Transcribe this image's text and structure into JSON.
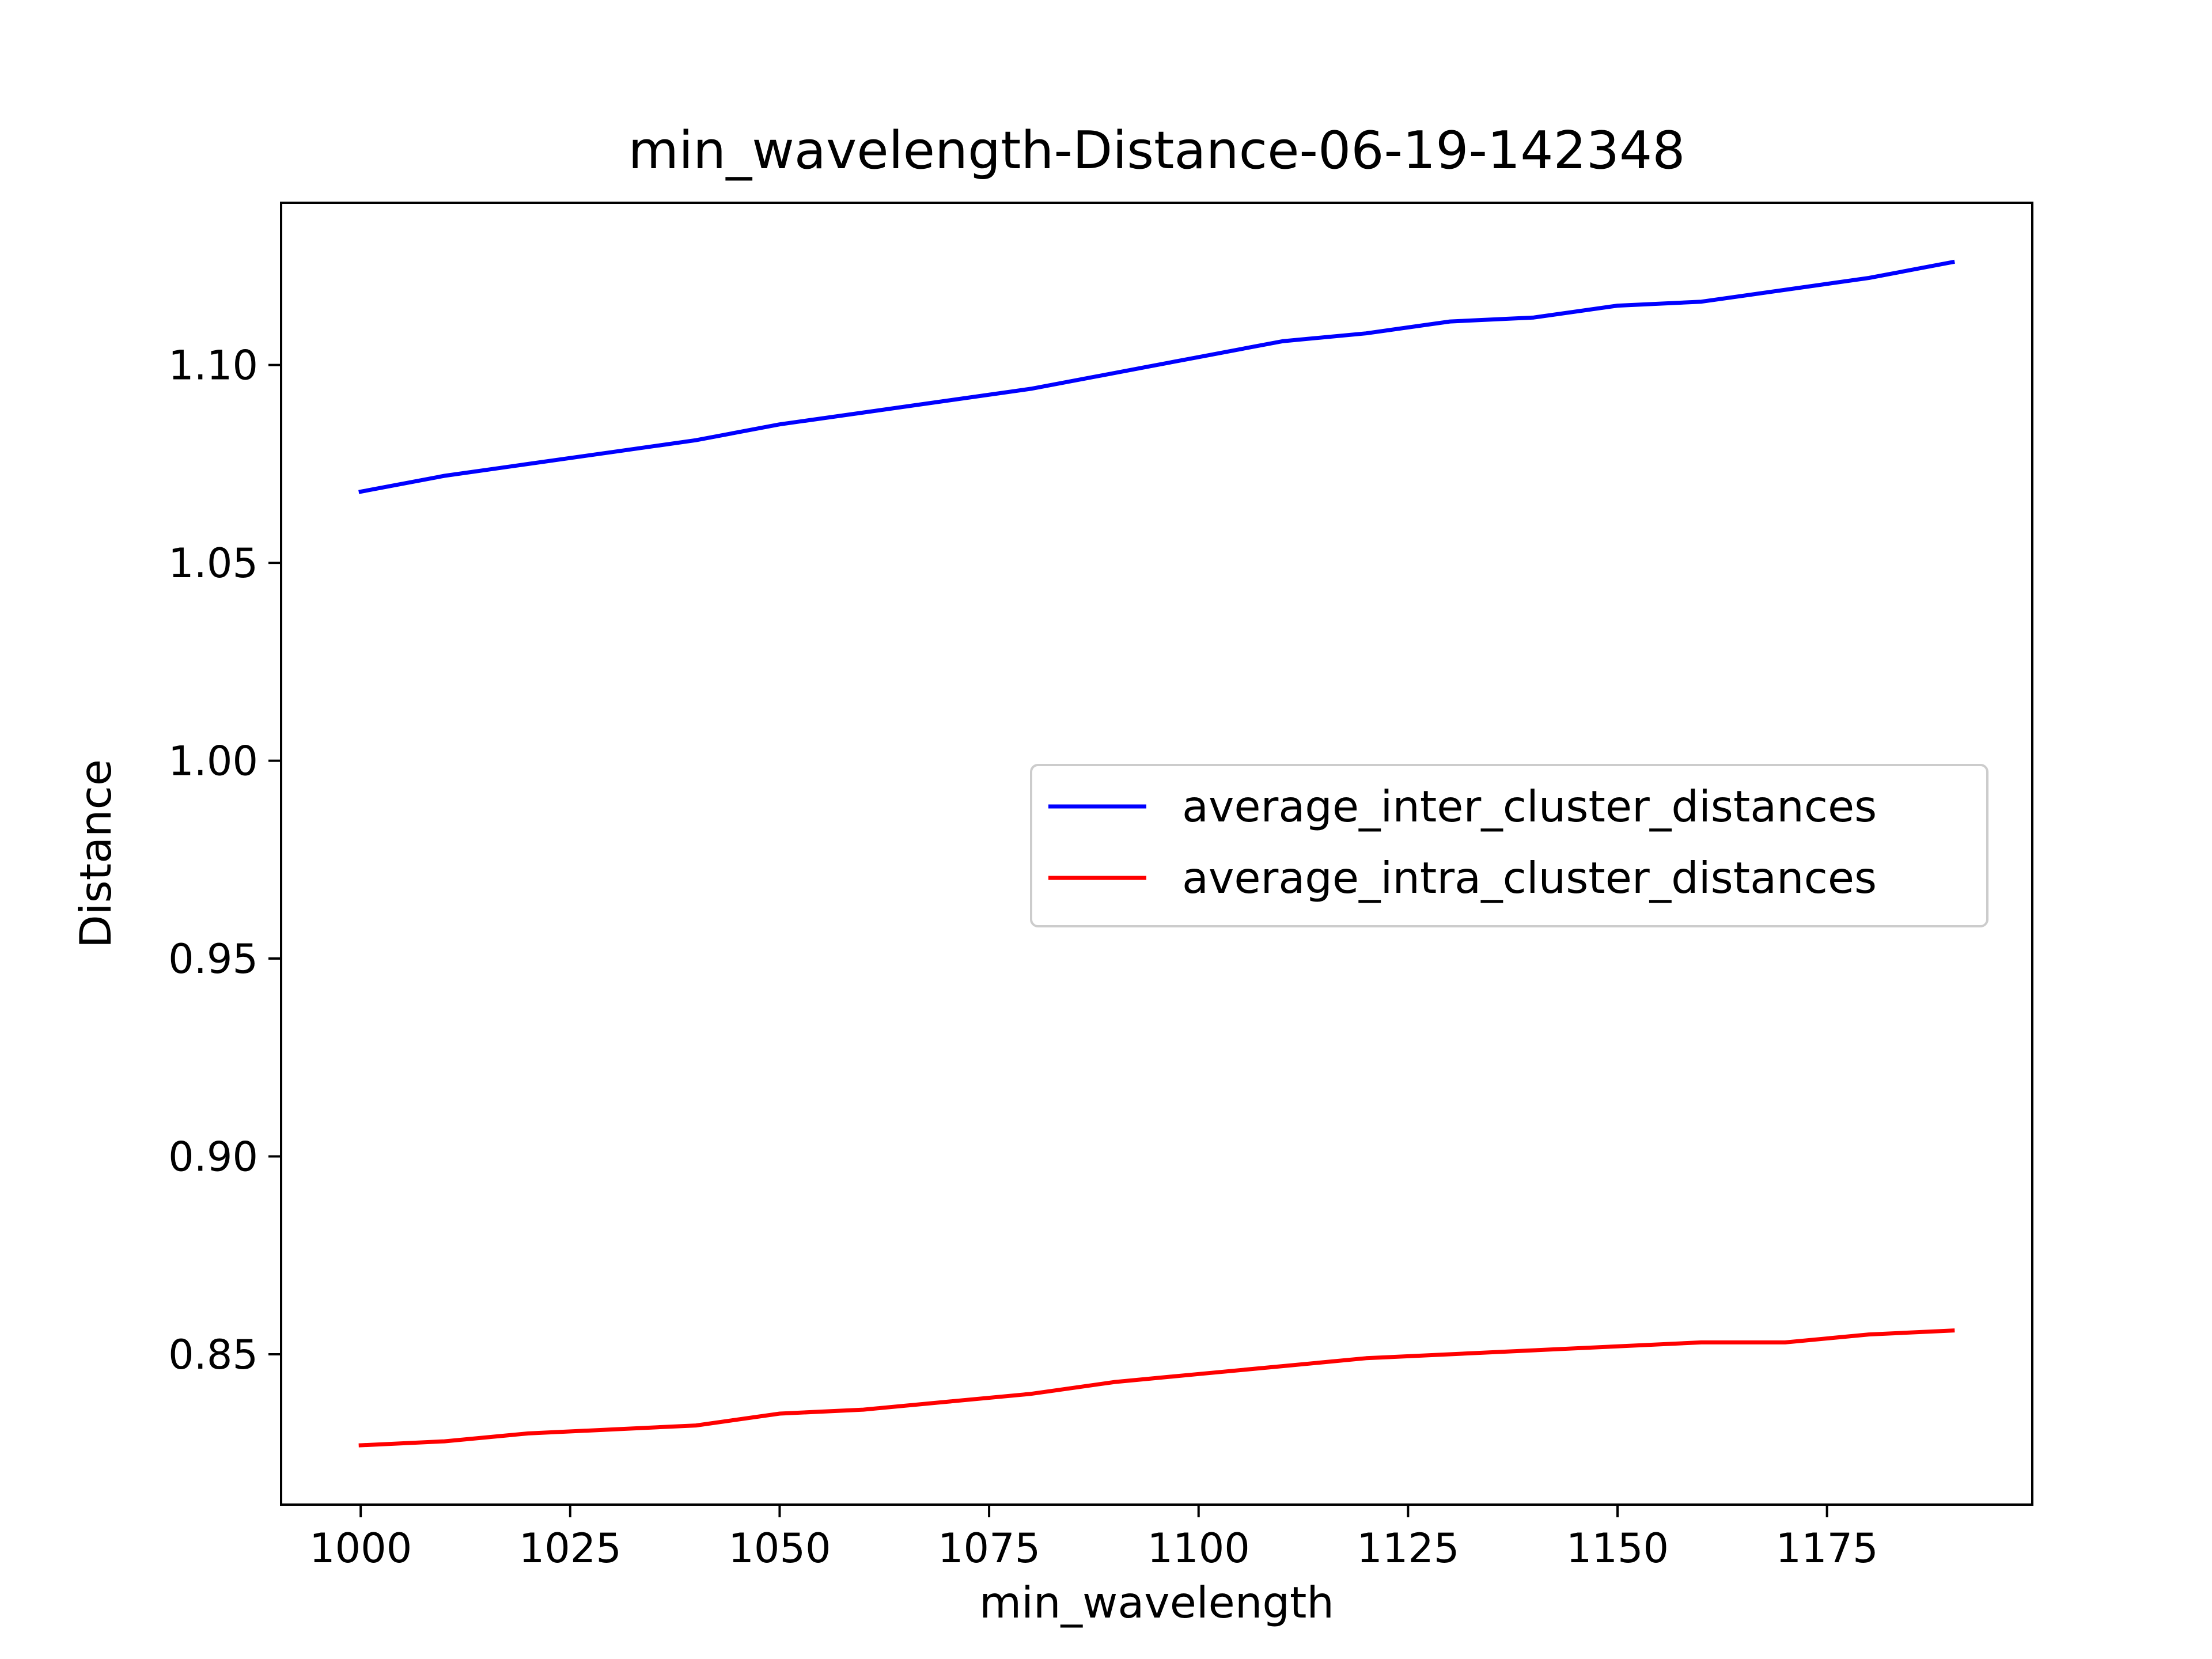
{
  "chart_data": {
    "type": "line",
    "title": "min_wavelength-Distance-06-19-142348",
    "xlabel": "min_wavelength",
    "ylabel": "Distance",
    "xlim": [
      990.5,
      1199.5
    ],
    "ylim": [
      0.812,
      1.141
    ],
    "xticks": [
      1000,
      1025,
      1050,
      1075,
      1100,
      1125,
      1150,
      1175
    ],
    "xtick_labels": [
      "1000",
      "1025",
      "1050",
      "1075",
      "1100",
      "1125",
      "1150",
      "1175"
    ],
    "yticks": [
      0.85,
      0.9,
      0.95,
      1.0,
      1.05,
      1.1
    ],
    "ytick_labels": [
      "0.85",
      "0.90",
      "0.95",
      "1.00",
      "1.05",
      "1.10"
    ],
    "grid": false,
    "legend_position": "center-right",
    "x": [
      1000,
      1010,
      1020,
      1030,
      1040,
      1050,
      1060,
      1070,
      1080,
      1090,
      1100,
      1110,
      1120,
      1130,
      1140,
      1150,
      1160,
      1170,
      1180,
      1190
    ],
    "series": [
      {
        "name": "average_inter_cluster_distances",
        "color": "#0000ff",
        "values": [
          1.068,
          1.072,
          1.075,
          1.078,
          1.081,
          1.085,
          1.088,
          1.091,
          1.094,
          1.098,
          1.102,
          1.106,
          1.108,
          1.111,
          1.112,
          1.115,
          1.116,
          1.119,
          1.122,
          1.126
        ]
      },
      {
        "name": "average_intra_cluster_distances",
        "color": "#ff0000",
        "values": [
          0.827,
          0.828,
          0.83,
          0.831,
          0.832,
          0.835,
          0.836,
          0.838,
          0.84,
          0.843,
          0.845,
          0.847,
          0.849,
          0.85,
          0.851,
          0.852,
          0.853,
          0.853,
          0.855,
          0.856
        ]
      }
    ]
  }
}
